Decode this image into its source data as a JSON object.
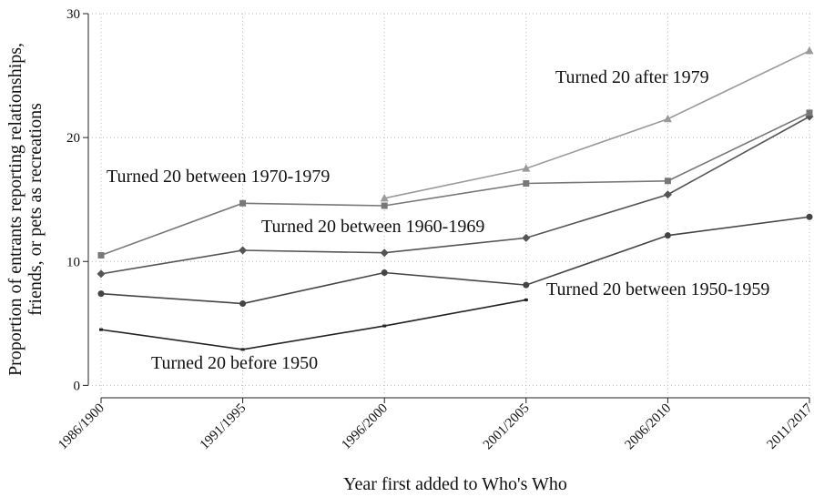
{
  "chart_data": {
    "type": "line",
    "xlabel": "Year first added to Who's Who",
    "ylabel": [
      "Proportion of entrants reporting relationships,",
      "friends, or pets as recreations"
    ],
    "categories": [
      "1986/1900",
      "1991/1995",
      "1996/2000",
      "2001/2005",
      "2006/2010",
      "2011/2017"
    ],
    "ylim": [
      -1,
      30
    ],
    "yticks": [
      0,
      10,
      20,
      30
    ],
    "grid": true,
    "series": [
      {
        "name": "Turned 20 before 1950",
        "color": "#222222",
        "marker": "dash",
        "values": [
          4.5,
          2.9,
          4.8,
          6.9,
          null,
          null
        ]
      },
      {
        "name": "Turned 20 between 1950-1959",
        "color": "#444444",
        "marker": "circle",
        "values": [
          7.4,
          6.6,
          9.1,
          8.1,
          12.1,
          13.6
        ]
      },
      {
        "name": "Turned 20 between 1960-1969",
        "color": "#555555",
        "marker": "diamond",
        "values": [
          9.0,
          10.9,
          10.7,
          11.9,
          15.4,
          21.7
        ]
      },
      {
        "name": "Turned 20 between 1970-1979",
        "color": "#777777",
        "marker": "square",
        "values": [
          10.5,
          14.7,
          14.5,
          16.3,
          16.5,
          22.0
        ]
      },
      {
        "name": "Turned 20 after 1979",
        "color": "#9a9a9a",
        "marker": "triangle",
        "values": [
          null,
          null,
          15.1,
          17.5,
          21.5,
          27.0
        ]
      }
    ]
  }
}
